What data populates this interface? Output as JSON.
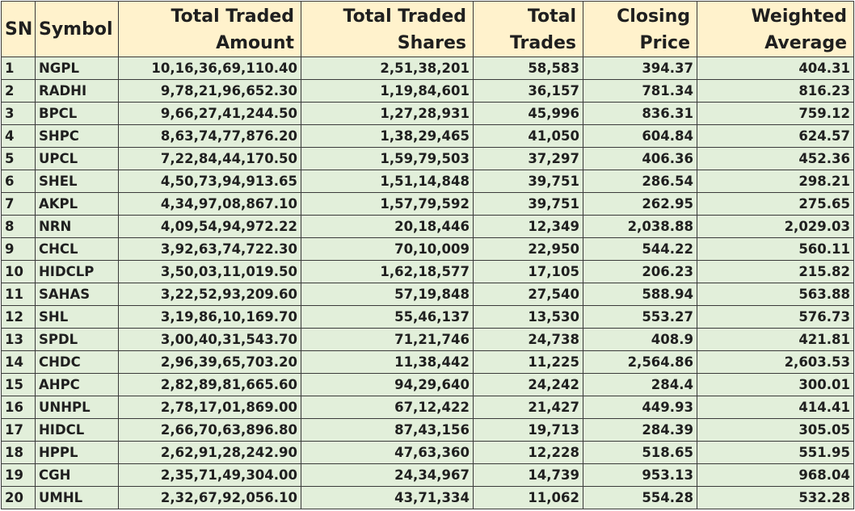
{
  "headers": {
    "sn": "SN",
    "symbol": "Symbol",
    "amount": [
      "Total Traded",
      "Amount"
    ],
    "shares": [
      "Total Traded",
      "Shares"
    ],
    "trades": [
      "Total",
      "Trades"
    ],
    "closing": [
      "Closing",
      "Price"
    ],
    "weighted": [
      "Weighted",
      "Average"
    ]
  },
  "rows": [
    [
      "1",
      "NGPL",
      "10,16,36,69,110.40",
      "2,51,38,201",
      "58,583",
      "394.37",
      "404.31"
    ],
    [
      "2",
      "RADHI",
      "9,78,21,96,652.30",
      "1,19,84,601",
      "36,157",
      "781.34",
      "816.23"
    ],
    [
      "3",
      "BPCL",
      "9,66,27,41,244.50",
      "1,27,28,931",
      "45,996",
      "836.31",
      "759.12"
    ],
    [
      "4",
      "SHPC",
      "8,63,74,77,876.20",
      "1,38,29,465",
      "41,050",
      "604.84",
      "624.57"
    ],
    [
      "5",
      "UPCL",
      "7,22,84,44,170.50",
      "1,59,79,503",
      "37,297",
      "406.36",
      "452.36"
    ],
    [
      "6",
      "SHEL",
      "4,50,73,94,913.65",
      "1,51,14,848",
      "39,751",
      "286.54",
      "298.21"
    ],
    [
      "7",
      "AKPL",
      "4,34,97,08,867.10",
      "1,57,79,592",
      "39,751",
      "262.95",
      "275.65"
    ],
    [
      "8",
      "NRN",
      "4,09,54,94,972.22",
      "20,18,446",
      "12,349",
      "2,038.88",
      "2,029.03"
    ],
    [
      "9",
      "CHCL",
      "3,92,63,74,722.30",
      "70,10,009",
      "22,950",
      "544.22",
      "560.11"
    ],
    [
      "10",
      "HIDCLP",
      "3,50,03,11,019.50",
      "1,62,18,577",
      "17,105",
      "206.23",
      "215.82"
    ],
    [
      "11",
      "SAHAS",
      "3,22,52,93,209.60",
      "57,19,848",
      "27,540",
      "588.94",
      "563.88"
    ],
    [
      "12",
      "SHL",
      "3,19,86,10,169.70",
      "55,46,137",
      "13,530",
      "553.27",
      "576.73"
    ],
    [
      "13",
      "SPDL",
      "3,00,40,31,543.70",
      "71,21,746",
      "24,738",
      "408.9",
      "421.81"
    ],
    [
      "14",
      "CHDC",
      "2,96,39,65,703.20",
      "11,38,442",
      "11,225",
      "2,564.86",
      "2,603.53"
    ],
    [
      "15",
      "AHPC",
      "2,82,89,81,665.60",
      "94,29,640",
      "24,242",
      "284.4",
      "300.01"
    ],
    [
      "16",
      "UNHPL",
      "2,78,17,01,869.00",
      "67,12,422",
      "21,427",
      "449.93",
      "414.41"
    ],
    [
      "17",
      "HIDCL",
      "2,66,70,63,896.80",
      "87,43,156",
      "19,713",
      "284.39",
      "305.05"
    ],
    [
      "18",
      "HPPL",
      "2,62,91,28,242.90",
      "47,63,360",
      "12,228",
      "518.65",
      "551.95"
    ],
    [
      "19",
      "CGH",
      "2,35,71,49,304.00",
      "24,34,967",
      "14,739",
      "953.13",
      "968.04"
    ],
    [
      "20",
      "UMHL",
      "2,32,67,92,056.10",
      "43,71,334",
      "11,062",
      "554.28",
      "532.28"
    ]
  ],
  "colors": {
    "header_bg": "#fff2cc",
    "row_bg": "#e2efda",
    "border": "#3a3a3a"
  }
}
